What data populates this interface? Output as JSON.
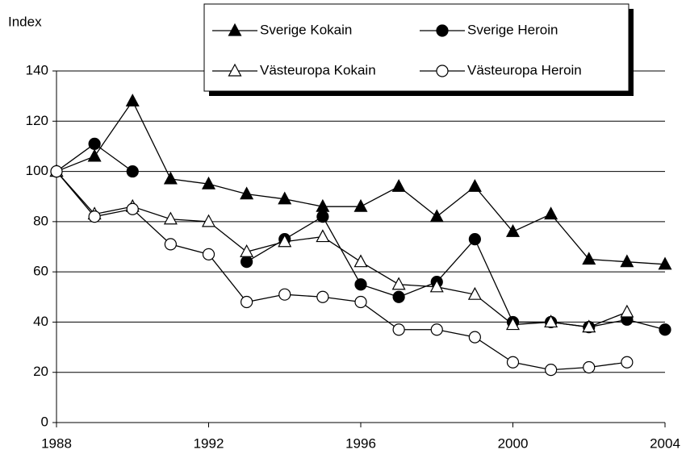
{
  "chart_data": {
    "type": "line",
    "y_label": "Index",
    "x": [
      1988,
      1989,
      1990,
      1991,
      1992,
      1993,
      1994,
      1995,
      1996,
      1997,
      1998,
      1999,
      2000,
      2001,
      2002,
      2003,
      2004
    ],
    "series": [
      {
        "name": "Sverige Kokain",
        "color": "#000000",
        "marker": "triangle",
        "marker_fill": "#000000",
        "values": [
          100,
          106,
          128,
          97,
          95,
          91,
          89,
          86,
          86,
          94,
          82,
          94,
          76,
          83,
          65,
          64,
          63
        ]
      },
      {
        "name": "Sverige Heroin",
        "color": "#000000",
        "marker": "circle",
        "marker_fill": "#000000",
        "values": [
          100,
          111,
          100,
          null,
          null,
          64,
          73,
          82,
          55,
          50,
          56,
          73,
          40,
          40,
          38,
          41,
          37
        ]
      },
      {
        "name": "Västeuropa Kokain",
        "color": "#000000",
        "marker": "triangle",
        "marker_fill": "#ffffff",
        "values": [
          100,
          83,
          86,
          81,
          80,
          68,
          72,
          74,
          64,
          55,
          54,
          51,
          39,
          40,
          38,
          44,
          null
        ]
      },
      {
        "name": "Västeuropa Heroin",
        "color": "#000000",
        "marker": "circle",
        "marker_fill": "#ffffff",
        "values": [
          100,
          82,
          85,
          71,
          67,
          48,
          51,
          50,
          48,
          37,
          37,
          34,
          24,
          21,
          22,
          24,
          null
        ]
      }
    ],
    "xlim": [
      1988,
      2004
    ],
    "xticks": [
      1988,
      1992,
      1996,
      2000,
      2004
    ],
    "ylim": [
      0,
      140
    ],
    "yticks": [
      0,
      20,
      40,
      60,
      80,
      100,
      120,
      140
    ],
    "grid": true,
    "legend": "top"
  }
}
